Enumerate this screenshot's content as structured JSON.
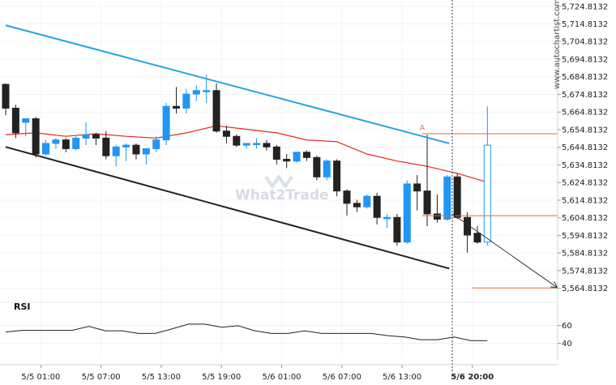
{
  "chart_data": {
    "type": "candlestick",
    "y_ticks": [
      "5,724.8132",
      "5,714.8132",
      "5,704.8132",
      "5,694.8132",
      "5,684.8132",
      "5,674.8132",
      "5,664.8132",
      "5,654.8132",
      "5,644.8132",
      "5,634.8132",
      "5,624.8132",
      "5,614.8132",
      "5,604.8132",
      "5,594.8132",
      "5,584.8132",
      "5,574.8132",
      "5,564.8132"
    ],
    "y_tick_values": [
      5724.8132,
      5714.8132,
      5704.8132,
      5694.8132,
      5684.8132,
      5674.8132,
      5664.8132,
      5654.8132,
      5644.8132,
      5634.8132,
      5624.8132,
      5614.8132,
      5604.8132,
      5594.8132,
      5584.8132,
      5574.8132,
      5564.8132
    ],
    "ylim": [
      5560.5,
      5727
    ],
    "x_ticks": [
      "5/5 01:00",
      "5/5 07:00",
      "5/5 13:00",
      "5/5 19:00",
      "5/6 01:00",
      "5/6 07:00",
      "5/6 13:00",
      "5/6 20:00"
    ],
    "x_tick_index": [
      3.5,
      9.5,
      15.5,
      21.5,
      27.5,
      33.5,
      39.5,
      46.5
    ],
    "x_domain": [
      0,
      55
    ],
    "candles": [
      {
        "o": 5680.5,
        "h": 5681,
        "c": 5667,
        "l": 5663
      },
      {
        "o": 5667,
        "h": 5669,
        "c": 5653,
        "l": 5650
      },
      {
        "o": 5659,
        "h": 5661,
        "c": 5661,
        "l": 5651
      },
      {
        "o": 5661,
        "h": 5662,
        "c": 5641,
        "l": 5639
      },
      {
        "o": 5641,
        "h": 5649,
        "c": 5647,
        "l": 5640
      },
      {
        "o": 5647,
        "h": 5650,
        "c": 5649,
        "l": 5644
      },
      {
        "o": 5649,
        "h": 5650,
        "c": 5644,
        "l": 5642
      },
      {
        "o": 5644,
        "h": 5651,
        "c": 5650,
        "l": 5643
      },
      {
        "o": 5650,
        "h": 5659,
        "c": 5652,
        "l": 5646
      },
      {
        "o": 5652,
        "h": 5653,
        "c": 5650,
        "l": 5646
      },
      {
        "o": 5650,
        "h": 5654,
        "c": 5640,
        "l": 5638
      },
      {
        "o": 5640,
        "h": 5646,
        "c": 5645,
        "l": 5634
      },
      {
        "o": 5645,
        "h": 5647,
        "c": 5646,
        "l": 5637
      },
      {
        "o": 5646,
        "h": 5647,
        "c": 5641,
        "l": 5638
      },
      {
        "o": 5641,
        "h": 5644,
        "c": 5644,
        "l": 5635
      },
      {
        "o": 5644,
        "h": 5651,
        "c": 5649,
        "l": 5642
      },
      {
        "o": 5649,
        "h": 5670,
        "c": 5668,
        "l": 5646
      },
      {
        "o": 5668,
        "h": 5679,
        "c": 5667,
        "l": 5664
      },
      {
        "o": 5667,
        "h": 5678,
        "c": 5675,
        "l": 5664
      },
      {
        "o": 5675,
        "h": 5680,
        "c": 5677,
        "l": 5671
      },
      {
        "o": 5677,
        "h": 5686,
        "c": 5677,
        "l": 5670
      },
      {
        "o": 5677,
        "h": 5681,
        "c": 5654,
        "l": 5653
      },
      {
        "o": 5654,
        "h": 5657,
        "c": 5651,
        "l": 5647
      },
      {
        "o": 5651,
        "h": 5652,
        "c": 5646,
        "l": 5645
      },
      {
        "o": 5646,
        "h": 5647,
        "c": 5647,
        "l": 5644
      },
      {
        "o": 5647,
        "h": 5650,
        "c": 5647,
        "l": 5644
      },
      {
        "o": 5647,
        "h": 5649,
        "c": 5645,
        "l": 5643
      },
      {
        "o": 5645,
        "h": 5646,
        "c": 5638,
        "l": 5635
      },
      {
        "o": 5638,
        "h": 5641,
        "c": 5637,
        "l": 5633
      },
      {
        "o": 5637,
        "h": 5642,
        "c": 5642,
        "l": 5636
      },
      {
        "o": 5642,
        "h": 5643,
        "c": 5639,
        "l": 5637
      },
      {
        "o": 5639,
        "h": 5640,
        "c": 5628,
        "l": 5626
      },
      {
        "o": 5628,
        "h": 5638,
        "c": 5637,
        "l": 5626
      },
      {
        "o": 5637,
        "h": 5638,
        "c": 5620,
        "l": 5617
      },
      {
        "o": 5620,
        "h": 5621,
        "c": 5613,
        "l": 5606
      },
      {
        "o": 5613,
        "h": 5615,
        "c": 5611,
        "l": 5608
      },
      {
        "o": 5611,
        "h": 5618,
        "c": 5617,
        "l": 5610
      },
      {
        "o": 5617,
        "h": 5619,
        "c": 5605,
        "l": 5601
      },
      {
        "o": 5605,
        "h": 5607,
        "c": 5605,
        "l": 5599
      },
      {
        "o": 5605,
        "h": 5607,
        "c": 5591,
        "l": 5589
      },
      {
        "o": 5591,
        "h": 5626,
        "c": 5624,
        "l": 5590
      },
      {
        "o": 5624,
        "h": 5629,
        "c": 5620,
        "l": 5609
      },
      {
        "o": 5620,
        "h": 5652,
        "c": 5607,
        "l": 5600
      },
      {
        "o": 5607,
        "h": 5618,
        "c": 5604,
        "l": 5602
      },
      {
        "o": 5604,
        "h": 5629,
        "c": 5628,
        "l": 5603
      },
      {
        "o": 5628,
        "h": 5630,
        "c": 5605,
        "l": 5604
      },
      {
        "o": 5605,
        "h": 5608,
        "c": 5595,
        "l": 5585
      },
      {
        "o": 5596,
        "h": 5600,
        "c": 5591,
        "l": 5590
      },
      {
        "o": 5591,
        "h": 5668,
        "c": 5646,
        "l": 5589
      }
    ],
    "bull_color": "#2196f3",
    "bear_color": "#222222",
    "ma_color": "#e8281e",
    "ma": [
      [
        0,
        5652
      ],
      [
        3,
        5653
      ],
      [
        6,
        5651
      ],
      [
        9,
        5652.5
      ],
      [
        12,
        5651
      ],
      [
        15,
        5650
      ],
      [
        18,
        5653
      ],
      [
        21,
        5657
      ],
      [
        24,
        5655
      ],
      [
        27,
        5653
      ],
      [
        30,
        5649
      ],
      [
        33,
        5648
      ],
      [
        36,
        5641
      ],
      [
        39,
        5637
      ],
      [
        42,
        5634
      ],
      [
        45,
        5630
      ],
      [
        48,
        5625
      ]
    ],
    "resistance_line": {
      "from": [
        0,
        5714
      ],
      "to": [
        44.2,
        5647
      ],
      "color": "#29a3e0"
    },
    "support_line": {
      "from": [
        0,
        5645
      ],
      "to": [
        44.2,
        5576
      ],
      "color": "#222222"
    },
    "projection_arrow": {
      "from": [
        44.5,
        5607
      ],
      "to": [
        55,
        5565
      ],
      "color": "#333333"
    },
    "horizontal_levels": [
      {
        "from": 41.5,
        "to": 55,
        "value": 5652.5,
        "color": "#e9693a"
      },
      {
        "from": 41.5,
        "to": 55,
        "value": 5606,
        "color": "#e9693a"
      },
      {
        "from": 46.5,
        "to": 55,
        "value": 5565,
        "color": "#e9693a"
      }
    ],
    "marker": {
      "text": "A",
      "index": 41.5,
      "value": 5654.5,
      "color": "#e9693a"
    },
    "vertical_marker_index": 44.5,
    "rsi": {
      "label": "RSI",
      "ticks": [
        60,
        40
      ],
      "ylim": [
        25,
        75
      ],
      "values": [
        [
          0,
          52.6
        ],
        [
          2,
          54.5
        ],
        [
          4,
          54.5
        ],
        [
          6,
          54.5
        ],
        [
          8,
          54.5
        ],
        [
          10,
          59
        ],
        [
          12,
          54
        ],
        [
          14,
          54
        ],
        [
          16,
          51
        ],
        [
          18,
          51
        ],
        [
          20,
          56
        ],
        [
          22,
          61.5
        ],
        [
          24,
          61.5
        ],
        [
          26,
          58
        ],
        [
          28,
          59.6
        ],
        [
          30,
          54
        ],
        [
          32,
          51
        ],
        [
          34,
          51
        ],
        [
          36,
          54
        ],
        [
          38,
          51
        ],
        [
          40,
          51
        ],
        [
          42,
          51
        ],
        [
          44,
          51
        ],
        [
          46,
          48.5
        ],
        [
          48,
          47
        ],
        [
          50,
          44
        ],
        [
          52,
          44
        ],
        [
          54,
          47
        ],
        [
          56,
          43
        ],
        [
          58,
          43
        ]
      ]
    },
    "watermark": "What2Trade",
    "side_credit": "www.autochartist.com"
  }
}
